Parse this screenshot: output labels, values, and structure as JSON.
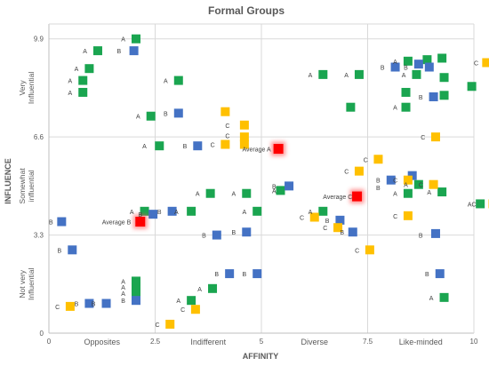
{
  "chart_data": {
    "type": "scatter",
    "title": "Formal Groups",
    "xlabel": "AFFINITY",
    "ylabel": "INFLUENCE",
    "xlim": [
      0,
      10
    ],
    "ylim": [
      0,
      10.4
    ],
    "x_tick_labels": [
      {
        "x": 0,
        "text": "0"
      },
      {
        "x": 2.5,
        "text": "2.5"
      },
      {
        "x": 5,
        "text": "5"
      },
      {
        "x": 7.5,
        "text": "7.5"
      },
      {
        "x": 10,
        "text": "10"
      }
    ],
    "y_tick_labels": [
      {
        "y": 0,
        "text": "0"
      },
      {
        "y": 3.3,
        "text": "3.3"
      },
      {
        "y": 6.6,
        "text": "6.6"
      },
      {
        "y": 9.9,
        "text": "9.9"
      }
    ],
    "x_category_labels": [
      {
        "x": 1.25,
        "text": "Opposites"
      },
      {
        "x": 3.75,
        "text": "Indifferent"
      },
      {
        "x": 6.25,
        "text": "Diverse"
      },
      {
        "x": 8.75,
        "text": "Like-minded"
      }
    ],
    "y_category_labels": [
      {
        "y": 1.65,
        "text": "Not very\nInfluential"
      },
      {
        "y": 4.95,
        "text": "Somewhat\ninfluential"
      },
      {
        "y": 8.25,
        "text": "Very\nInfluential"
      }
    ],
    "grid": true,
    "colors": {
      "A": "#1aa550",
      "B": "#4472c4",
      "C": "#ffc000",
      "Average": "#ff0000"
    },
    "series": [
      {
        "name": "A",
        "points": [
          [
            2.05,
            9.9
          ],
          [
            1.15,
            9.5
          ],
          [
            0.95,
            8.9
          ],
          [
            0.8,
            8.5
          ],
          [
            0.8,
            8.1
          ],
          [
            3.05,
            8.5
          ],
          [
            2.4,
            7.3
          ],
          [
            2.6,
            6.3
          ],
          [
            6.45,
            8.7
          ],
          [
            7.3,
            8.7
          ],
          [
            8.45,
            9.15
          ],
          [
            8.9,
            9.2
          ],
          [
            9.25,
            9.25
          ],
          [
            8.65,
            8.7
          ],
          [
            9.3,
            8.6
          ],
          [
            9.95,
            8.3
          ],
          [
            8.4,
            8.1
          ],
          [
            9.3,
            8.0
          ],
          [
            7.1,
            7.6
          ],
          [
            8.4,
            7.6
          ],
          [
            5.45,
            4.8
          ],
          [
            4.65,
            4.7
          ],
          [
            3.8,
            4.7
          ],
          [
            3.35,
            4.1
          ],
          [
            4.9,
            4.1
          ],
          [
            6.45,
            4.1
          ],
          [
            2.25,
            4.1
          ],
          [
            8.45,
            4.7
          ],
          [
            8.7,
            5.0
          ],
          [
            9.25,
            4.75
          ],
          [
            10.15,
            4.35
          ],
          [
            2.05,
            1.75
          ],
          [
            2.05,
            1.55
          ],
          [
            2.05,
            1.35
          ],
          [
            3.85,
            1.5
          ],
          [
            3.35,
            1.1
          ],
          [
            9.3,
            1.2
          ]
        ]
      },
      {
        "name": "B",
        "points": [
          [
            2.0,
            9.5
          ],
          [
            8.15,
            8.95
          ],
          [
            8.7,
            9.05
          ],
          [
            8.95,
            8.95
          ],
          [
            9.05,
            7.95
          ],
          [
            3.05,
            7.4
          ],
          [
            3.5,
            6.3
          ],
          [
            5.65,
            4.95
          ],
          [
            6.85,
            3.8
          ],
          [
            7.15,
            3.4
          ],
          [
            8.05,
            5.15
          ],
          [
            8.55,
            5.3
          ],
          [
            9.1,
            3.35
          ],
          [
            2.45,
            4.0
          ],
          [
            2.9,
            4.1
          ],
          [
            0.3,
            3.75
          ],
          [
            0.55,
            2.8
          ],
          [
            3.95,
            3.3
          ],
          [
            4.65,
            3.4
          ],
          [
            4.25,
            2.0
          ],
          [
            4.9,
            2.0
          ],
          [
            9.2,
            2.0
          ],
          [
            0.95,
            1.0
          ],
          [
            1.35,
            1.0
          ],
          [
            2.05,
            1.1
          ]
        ]
      },
      {
        "name": "C",
        "points": [
          [
            10.3,
            9.1
          ],
          [
            4.15,
            7.45
          ],
          [
            4.6,
            7.0
          ],
          [
            4.6,
            6.6
          ],
          [
            4.6,
            6.35
          ],
          [
            4.15,
            6.35
          ],
          [
            9.1,
            6.6
          ],
          [
            7.75,
            5.85
          ],
          [
            7.3,
            5.45
          ],
          [
            8.45,
            5.15
          ],
          [
            9.05,
            5.0
          ],
          [
            10.45,
            4.35
          ],
          [
            6.25,
            3.9
          ],
          [
            6.8,
            3.55
          ],
          [
            8.45,
            3.95
          ],
          [
            7.55,
            2.8
          ],
          [
            0.5,
            0.9
          ],
          [
            3.45,
            0.8
          ],
          [
            2.85,
            0.3
          ]
        ]
      },
      {
        "name": "Average",
        "points": [
          [
            5.4,
            6.2
          ],
          [
            7.25,
            4.6
          ],
          [
            2.15,
            3.75
          ]
        ]
      }
    ],
    "annotations": [
      {
        "text": "A",
        "x": 1.7,
        "y": 9.9
      },
      {
        "text": "A",
        "x": 0.8,
        "y": 9.5
      },
      {
        "text": "B",
        "x": 1.6,
        "y": 9.5
      },
      {
        "text": "A",
        "x": 0.6,
        "y": 8.9
      },
      {
        "text": "A",
        "x": 0.45,
        "y": 8.5
      },
      {
        "text": "A",
        "x": 0.45,
        "y": 8.1
      },
      {
        "text": "A",
        "x": 2.7,
        "y": 8.5
      },
      {
        "text": "A",
        "x": 2.05,
        "y": 7.3
      },
      {
        "text": "A",
        "x": 2.2,
        "y": 6.3
      },
      {
        "text": "B",
        "x": 3.15,
        "y": 6.3
      },
      {
        "text": "B",
        "x": 2.7,
        "y": 7.4
      },
      {
        "text": "C",
        "x": 3.8,
        "y": 6.35
      },
      {
        "text": "C",
        "x": 4.15,
        "y": 7.0
      },
      {
        "text": "C",
        "x": 4.15,
        "y": 6.65
      },
      {
        "text": "A",
        "x": 6.1,
        "y": 8.7
      },
      {
        "text": "A",
        "x": 6.95,
        "y": 8.7
      },
      {
        "text": "A",
        "x": 8.1,
        "y": 9.15
      },
      {
        "text": "B",
        "x": 7.8,
        "y": 8.95
      },
      {
        "text": "B",
        "x": 8.35,
        "y": 8.95
      },
      {
        "text": "A",
        "x": 8.3,
        "y": 8.7
      },
      {
        "text": "B",
        "x": 8.7,
        "y": 7.95
      },
      {
        "text": "C",
        "x": 10.0,
        "y": 9.1
      },
      {
        "text": "A",
        "x": 8.1,
        "y": 7.6
      },
      {
        "text": "C",
        "x": 8.75,
        "y": 6.6
      },
      {
        "text": "Average A",
        "x": 4.55,
        "y": 6.2
      },
      {
        "text": "C",
        "x": 7.4,
        "y": 5.85
      },
      {
        "text": "C",
        "x": 6.95,
        "y": 5.45
      },
      {
        "text": "B",
        "x": 7.7,
        "y": 5.15
      },
      {
        "text": "C",
        "x": 8.1,
        "y": 5.15
      },
      {
        "text": "A",
        "x": 8.35,
        "y": 5.0
      },
      {
        "text": "C",
        "x": 8.7,
        "y": 5.0
      },
      {
        "text": "B",
        "x": 5.25,
        "y": 4.95
      },
      {
        "text": "A",
        "x": 5.25,
        "y": 4.8
      },
      {
        "text": "B",
        "x": 7.7,
        "y": 4.9
      },
      {
        "text": "A",
        "x": 8.1,
        "y": 4.7
      },
      {
        "text": "A",
        "x": 8.9,
        "y": 4.75
      },
      {
        "text": "Average C",
        "x": 6.45,
        "y": 4.6
      },
      {
        "text": "A",
        "x": 3.45,
        "y": 4.7
      },
      {
        "text": "A",
        "x": 4.3,
        "y": 4.7
      },
      {
        "text": "A",
        "x": 2.95,
        "y": 4.1
      },
      {
        "text": "A",
        "x": 4.55,
        "y": 4.1
      },
      {
        "text": "A",
        "x": 6.1,
        "y": 4.1
      },
      {
        "text": "AC",
        "x": 9.85,
        "y": 4.35
      },
      {
        "text": "C",
        "x": 8.1,
        "y": 3.95
      },
      {
        "text": "C",
        "x": 5.9,
        "y": 3.9
      },
      {
        "text": "B",
        "x": 6.5,
        "y": 3.8
      },
      {
        "text": "C",
        "x": 6.45,
        "y": 3.55
      },
      {
        "text": "B",
        "x": 6.85,
        "y": 3.4
      },
      {
        "text": "B",
        "x": 8.7,
        "y": 3.3
      },
      {
        "text": "C",
        "x": 7.2,
        "y": 2.8
      },
      {
        "text": "A",
        "x": 1.9,
        "y": 4.1
      },
      {
        "text": "B",
        "x": 2.1,
        "y": 4.0
      },
      {
        "text": "Average B",
        "x": 1.25,
        "y": 3.75
      },
      {
        "text": "B",
        "x": 2.55,
        "y": 4.1
      },
      {
        "text": "B",
        "x": 0.0,
        "y": 3.75
      },
      {
        "text": "B",
        "x": 0.2,
        "y": 2.8
      },
      {
        "text": "B",
        "x": 3.6,
        "y": 3.3
      },
      {
        "text": "B",
        "x": 4.3,
        "y": 3.4
      },
      {
        "text": "B",
        "x": 3.9,
        "y": 2.0
      },
      {
        "text": "B",
        "x": 4.55,
        "y": 2.0
      },
      {
        "text": "B",
        "x": 8.85,
        "y": 2.0
      },
      {
        "text": "A",
        "x": 1.7,
        "y": 1.75
      },
      {
        "text": "A",
        "x": 1.7,
        "y": 1.55
      },
      {
        "text": "A",
        "x": 1.7,
        "y": 1.35
      },
      {
        "text": "A",
        "x": 3.5,
        "y": 1.5
      },
      {
        "text": "A",
        "x": 3.0,
        "y": 1.1
      },
      {
        "text": "A",
        "x": 8.95,
        "y": 1.2
      },
      {
        "text": "C",
        "x": 0.15,
        "y": 0.9
      },
      {
        "text": "B",
        "x": 0.6,
        "y": 1.0
      },
      {
        "text": "B",
        "x": 1.0,
        "y": 1.0
      },
      {
        "text": "B",
        "x": 1.7,
        "y": 1.1
      },
      {
        "text": "C",
        "x": 3.1,
        "y": 0.8
      },
      {
        "text": "C",
        "x": 2.5,
        "y": 0.3
      }
    ]
  }
}
